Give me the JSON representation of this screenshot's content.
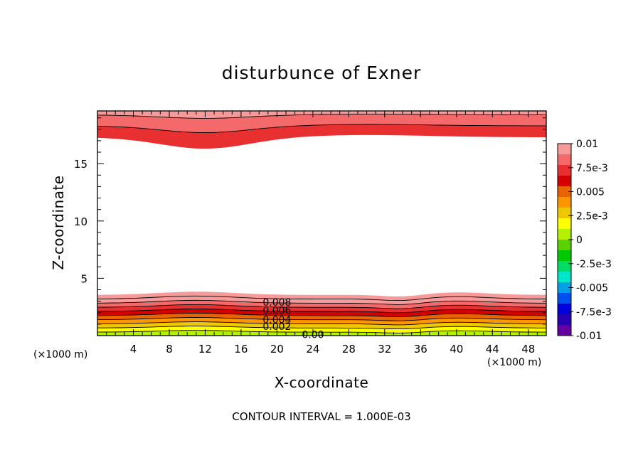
{
  "chart_data": {
    "type": "contour",
    "title": "disturbunce of Exner",
    "xlabel": "X-coordinate",
    "ylabel": "Z-coordinate",
    "x_unit_label": "(×1000 m)",
    "x_unit_label_right": "(×1000 m)",
    "footnote": "CONTOUR INTERVAL = 1.000E-03",
    "xlim": [
      0,
      50
    ],
    "ylim": [
      0,
      19.6
    ],
    "x_ticks": [
      4,
      8,
      12,
      16,
      20,
      24,
      28,
      32,
      36,
      40,
      44,
      48
    ],
    "y_ticks": [
      5,
      10,
      15
    ],
    "contour_interval": 0.001,
    "contour_labels": [
      {
        "text": "0.008",
        "x": 20.0,
        "z": 2.9
      },
      {
        "text": "0.006",
        "x": 20.0,
        "z": 2.2
      },
      {
        "text": "0.004",
        "x": 20.0,
        "z": 1.4
      },
      {
        "text": "0.002",
        "x": 20.0,
        "z": 0.8
      },
      {
        "text": "0.00",
        "x": 24.0,
        "z": 0.1
      }
    ],
    "colorbar": {
      "tick_labels": [
        "0.01",
        "7.5e-3",
        "0.005",
        "2.5e-3",
        "0",
        "-2.5e-3",
        "-0.005",
        "-7.5e-3",
        "-0.01"
      ],
      "tick_values": [
        0.01,
        0.0075,
        0.005,
        0.0025,
        0,
        -0.0025,
        -0.005,
        -0.0075,
        -0.01
      ],
      "colors_top_to_bottom": [
        "#f79a9a",
        "#f46a6a",
        "#e83030",
        "#d40000",
        "#e86400",
        "#ff9600",
        "#f0c800",
        "#ffff00",
        "#b4f000",
        "#5ad200",
        "#00c800",
        "#00dc64",
        "#00e6c8",
        "#00a0e6",
        "#0050f0",
        "#0000dc",
        "#2800b4",
        "#6400a0"
      ]
    },
    "bottom_band_levels_top_to_bottom": [
      0.01,
      0.009,
      0.008,
      0.007,
      0.006,
      0.005,
      0.004,
      0.003,
      0.002,
      0.001
    ],
    "top_band_levels_top_to_bottom": [
      0.0075,
      0.0085,
      0.0095
    ]
  }
}
